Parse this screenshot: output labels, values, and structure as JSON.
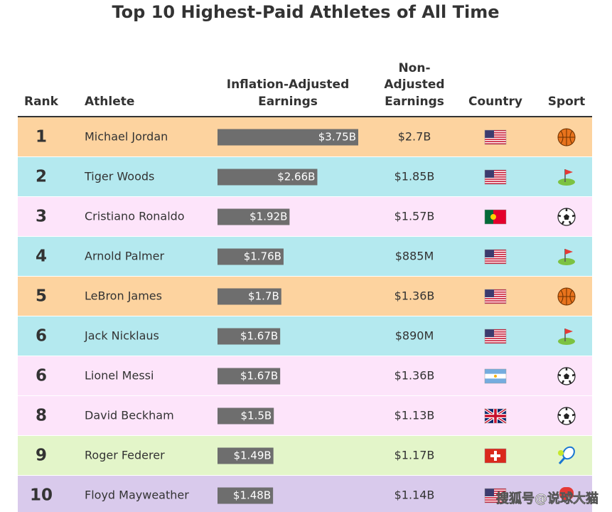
{
  "title": "Top 10 Highest-Paid Athletes of All Time",
  "header": {
    "rank": "Rank",
    "athlete": "Athlete",
    "inflation_adjusted": [
      "Inflation-Adjusted",
      "Earnings"
    ],
    "non_adjusted": [
      "Non-",
      "Adjusted",
      "Earnings"
    ],
    "country": "Country",
    "sport": "Sport"
  },
  "rows": [
    {
      "rank": 1,
      "athlete": "Michael Jordan",
      "inflation_adjusted": {
        "value": 3.75,
        "label": "$3.75B"
      },
      "non_adjusted": "$2.7B"
    },
    {
      "rank": 2,
      "athlete": "Tiger Woods",
      "inflation_adjusted": {
        "value": 2.66,
        "label": "$2.66B"
      },
      "non_adjusted": "$1.85B"
    },
    {
      "rank": 3,
      "athlete": "Cristiano Ronaldo",
      "inflation_adjusted": {
        "value": 1.92,
        "label": "$1.92B"
      },
      "non_adjusted": "$1.57B"
    },
    {
      "rank": 4,
      "athlete": "Arnold Palmer",
      "inflation_adjusted": {
        "value": 1.76,
        "label": "$1.76B"
      },
      "non_adjusted": "$885M"
    },
    {
      "rank": 5,
      "athlete": "LeBron James",
      "inflation_adjusted": {
        "value": 1.7,
        "label": "$1.7B"
      },
      "non_adjusted": "$1.36B"
    },
    {
      "rank": 6,
      "athlete": "Jack Nicklaus",
      "inflation_adjusted": {
        "value": 1.67,
        "label": "$1.67B"
      },
      "non_adjusted": "$890M"
    },
    {
      "rank": 6,
      "athlete": "Lionel Messi",
      "inflation_adjusted": {
        "value": 1.67,
        "label": "$1.67B"
      },
      "non_adjusted": "$1.36B"
    },
    {
      "rank": 8,
      "athlete": "David Beckham",
      "inflation_adjusted": {
        "value": 1.5,
        "label": "$1.5B"
      },
      "non_adjusted": "$1.13B"
    },
    {
      "rank": 9,
      "athlete": "Roger Federer",
      "inflation_adjusted": {
        "value": 1.49,
        "label": "$1.49B"
      },
      "non_adjusted": "$1.17B"
    },
    {
      "rank": 10,
      "athlete": "Floyd Mayweather",
      "inflation_adjusted": {
        "value": 1.48,
        "label": "$1.48B"
      },
      "non_adjusted": "$1.14B"
    }
  ],
  "watermark": "搜狐号@说球大猫"
}
